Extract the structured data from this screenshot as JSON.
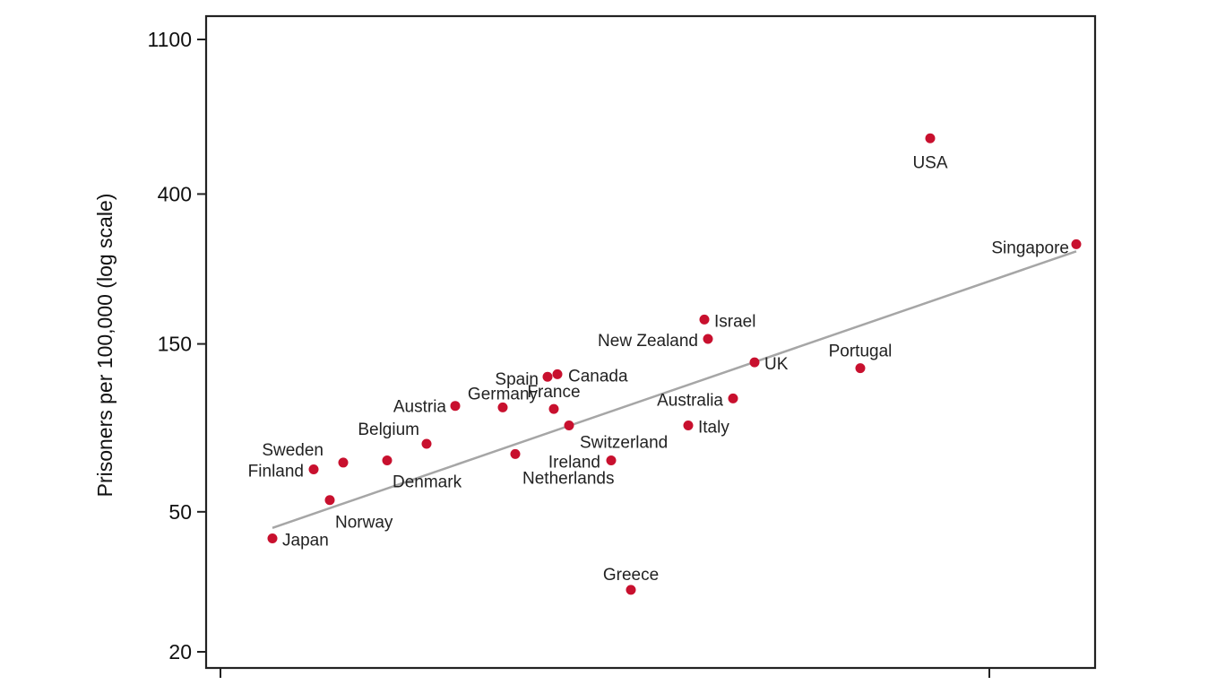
{
  "chart_data": {
    "type": "scatter",
    "title": "",
    "xlabel": "",
    "ylabel": "Prisoners per 100,000 (log scale)",
    "y_scale": "log",
    "ylim": [
      20,
      1100
    ],
    "y_ticks": [
      {
        "value": 20,
        "label": "20"
      },
      {
        "value": 50,
        "label": "50"
      },
      {
        "value": 150,
        "label": "150"
      },
      {
        "value": 400,
        "label": "400"
      },
      {
        "value": 1100,
        "label": "1100"
      }
    ],
    "x_ticks_labeled": false,
    "grid": false,
    "legend": "none",
    "colors": {
      "points": "#c8102e",
      "trend": "#a6a6a6",
      "axes": "#222222"
    },
    "points": [
      {
        "label": "USA",
        "y": 576,
        "label_pos": "below"
      },
      {
        "label": "Singapore",
        "y": 288,
        "label_pos": "left"
      },
      {
        "label": "Israel",
        "y": 176,
        "label_pos": "right"
      },
      {
        "label": "New Zealand",
        "y": 155,
        "label_pos": "left"
      },
      {
        "label": "Portugal",
        "y": 128,
        "label_pos": "above"
      },
      {
        "label": "UK",
        "y": 133,
        "label_pos": "right"
      },
      {
        "label": "Australia",
        "y": 105,
        "label_pos": "left"
      },
      {
        "label": "Italy",
        "y": 88,
        "label_pos": "right"
      },
      {
        "label": "Canada",
        "y": 123,
        "label_pos": "right"
      },
      {
        "label": "Spain",
        "y": 121,
        "label_pos": "left"
      },
      {
        "label": "France",
        "y": 98,
        "label_pos": "above"
      },
      {
        "label": "Germany",
        "y": 99,
        "label_pos": "above-left"
      },
      {
        "label": "Switzerland",
        "y": 88,
        "label_pos": "below-right"
      },
      {
        "label": "Austria",
        "y": 100,
        "label_pos": "left"
      },
      {
        "label": "Netherlands",
        "y": 73,
        "label_pos": "below-right"
      },
      {
        "label": "Ireland",
        "y": 70,
        "label_pos": "left"
      },
      {
        "label": "Belgium",
        "y": 78,
        "label_pos": "above-left"
      },
      {
        "label": "Denmark",
        "y": 70,
        "label_pos": "below"
      },
      {
        "label": "Sweden",
        "y": 69,
        "label_pos": "above-left"
      },
      {
        "label": "Finland",
        "y": 66,
        "label_pos": "left"
      },
      {
        "label": "Norway",
        "y": 54,
        "label_pos": "below-right"
      },
      {
        "label": "Japan",
        "y": 42,
        "label_pos": "right"
      },
      {
        "label": "Greece",
        "y": 30,
        "label_pos": "above"
      }
    ],
    "trend_line": {
      "y_start": 45,
      "y_end": 275
    }
  }
}
